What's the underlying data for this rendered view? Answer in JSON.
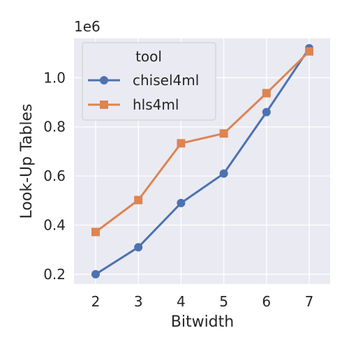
{
  "chart_data": {
    "type": "line",
    "x": [
      2,
      3,
      4,
      5,
      6,
      7
    ],
    "series": [
      {
        "name": "chisel4ml",
        "values": [
          200000,
          310000,
          490000,
          610000,
          860000,
          1120000
        ],
        "color": "#4c72b0",
        "marker": "circle"
      },
      {
        "name": "hls4ml",
        "values": [
          372000,
          502000,
          733000,
          773000,
          937000,
          1107000
        ],
        "color": "#dd8452",
        "marker": "square"
      }
    ],
    "xlabel": "Bitwidth",
    "ylabel": "Look-Up Tables",
    "y_scale_label": "1e6",
    "yticks": [
      "0.2",
      "0.4",
      "0.6",
      "0.8",
      "1.0"
    ],
    "ytick_values": [
      200000,
      400000,
      600000,
      800000,
      1000000
    ],
    "xtick_labels": [
      "2",
      "3",
      "4",
      "5",
      "6",
      "7"
    ],
    "ylim": [
      160000,
      1160000
    ],
    "legend_title": "tool",
    "legend_position": "top-left",
    "grid": true,
    "background": "#eaeaf2"
  }
}
